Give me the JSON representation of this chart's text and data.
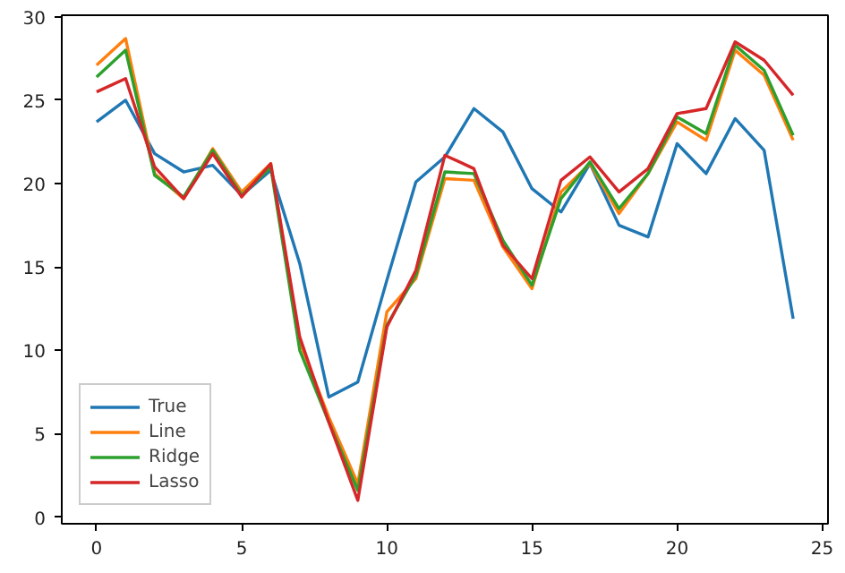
{
  "chart_data": {
    "type": "line",
    "x": [
      0,
      1,
      2,
      3,
      4,
      5,
      6,
      7,
      8,
      9,
      10,
      11,
      12,
      13,
      14,
      15,
      16,
      17,
      18,
      19,
      20,
      21,
      22,
      23,
      24
    ],
    "xlim": [
      -1.2,
      25.2
    ],
    "ylim": [
      -0.4,
      30.1
    ],
    "xticks": [
      0,
      5,
      10,
      15,
      20,
      25
    ],
    "yticks": [
      0,
      5,
      10,
      15,
      20,
      25,
      30
    ],
    "grid": false,
    "legend": "bottom left",
    "series": [
      {
        "name": "True",
        "color": "#1f77b4",
        "values": [
          23.7,
          25.0,
          21.8,
          20.7,
          21.1,
          19.3,
          20.8,
          15.2,
          7.2,
          8.1,
          14.2,
          20.1,
          21.6,
          24.5,
          23.1,
          19.7,
          18.3,
          21.2,
          17.5,
          16.8,
          22.4,
          20.6,
          23.9,
          22.0,
          11.9
        ]
      },
      {
        "name": "Line",
        "color": "#ff7f0e",
        "values": [
          27.1,
          28.7,
          20.6,
          19.1,
          22.1,
          19.5,
          21.2,
          10.5,
          6.0,
          2.0,
          12.3,
          14.3,
          20.3,
          20.2,
          16.2,
          13.7,
          19.5,
          21.2,
          18.2,
          20.6,
          23.7,
          22.6,
          28.0,
          26.5,
          22.6
        ]
      },
      {
        "name": "Ridge",
        "color": "#2ca02c",
        "values": [
          26.4,
          28.0,
          20.5,
          19.2,
          22.0,
          19.3,
          21.0,
          10.0,
          5.7,
          1.6,
          11.5,
          14.5,
          20.7,
          20.6,
          16.6,
          13.9,
          19.1,
          21.3,
          18.5,
          20.6,
          24.0,
          23.0,
          28.3,
          26.8,
          22.9
        ]
      },
      {
        "name": "Lasso",
        "color": "#d62728",
        "values": [
          25.5,
          26.3,
          21.0,
          19.1,
          21.8,
          19.2,
          21.2,
          10.8,
          5.7,
          1.0,
          11.4,
          14.8,
          21.7,
          20.9,
          16.3,
          14.3,
          20.2,
          21.6,
          19.5,
          20.9,
          24.2,
          24.5,
          28.5,
          27.4,
          25.3
        ]
      }
    ]
  }
}
